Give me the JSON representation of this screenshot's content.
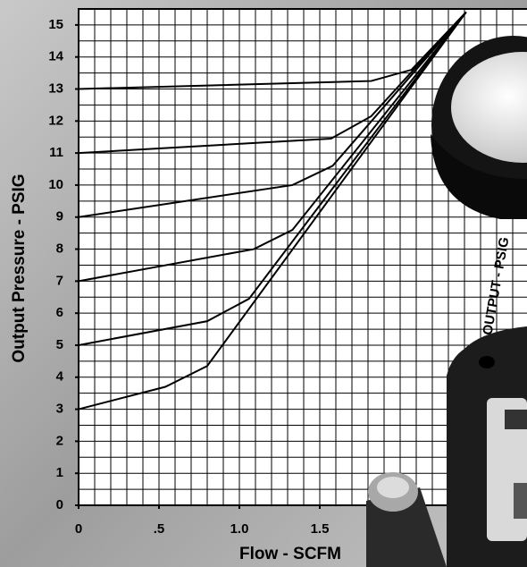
{
  "chart_data": {
    "type": "line",
    "xlabel": "Flow - SCFM",
    "ylabel": "Output Pressure - PSIG",
    "annotation": "OUTPUT - PSIG",
    "xlim": [
      0,
      2.8
    ],
    "ylim": [
      0,
      15.5
    ],
    "xticks": [
      0,
      {
        "value": 0.5,
        "label": ".5"
      },
      {
        "value": 1,
        "label": "1.0"
      },
      1.5
    ],
    "yticks": [
      0,
      1,
      2,
      3,
      4,
      5,
      6,
      7,
      8,
      9,
      10,
      11,
      12,
      13,
      14,
      15
    ],
    "grid": true,
    "xgrid_step": 0.1,
    "ygrid_step": 0.5,
    "series": [
      {
        "color": "#000000",
        "x": [
          0,
          1.82,
          2.07,
          2.41
        ],
        "values": [
          13,
          13.25,
          13.6,
          15.4
        ]
      },
      {
        "color": "#000000",
        "x": [
          0,
          1.57,
          1.82,
          2.41
        ],
        "values": [
          11,
          11.45,
          12.15,
          15.4
        ]
      },
      {
        "color": "#000000",
        "x": [
          0,
          1.33,
          1.58,
          2.41
        ],
        "values": [
          9,
          10,
          10.6,
          15.4
        ]
      },
      {
        "color": "#000000",
        "x": [
          0,
          1.09,
          1.33,
          2.41
        ],
        "values": [
          7,
          8,
          8.6,
          15.4
        ]
      },
      {
        "color": "#000000",
        "x": [
          0,
          0.8,
          1.06,
          2.41
        ],
        "values": [
          5,
          5.75,
          6.45,
          15.4
        ]
      },
      {
        "color": "#000000",
        "x": [
          0,
          0.54,
          0.8,
          2.41
        ],
        "values": [
          3,
          3.7,
          4.35,
          15.4
        ]
      }
    ]
  }
}
